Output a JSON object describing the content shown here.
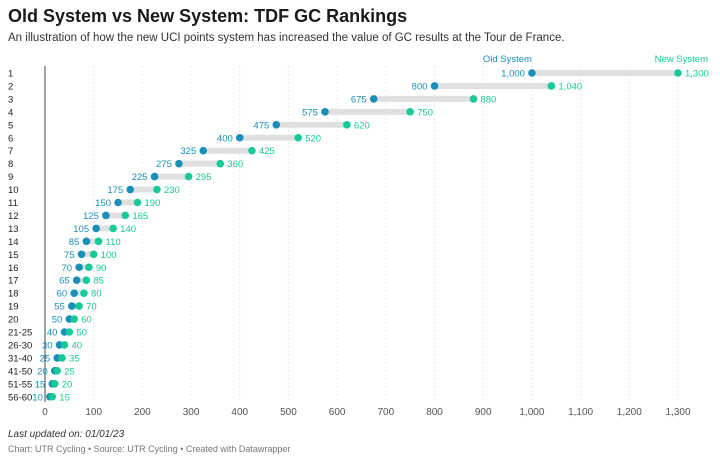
{
  "header": {
    "title": "Old System vs New System: TDF GC Rankings",
    "subtitle": "An illustration of how the new UCI points system has increased the value of GC results at the Tour de France."
  },
  "colors": {
    "old": "#1b8fb8",
    "new": "#18c99a",
    "connector": "#e0e0e0",
    "grid": "#e9e9e9",
    "axis": "#555555"
  },
  "chart_data": {
    "type": "dot-range",
    "xlim": [
      0,
      1300
    ],
    "xticks": [
      "0",
      "100",
      "200",
      "300",
      "400",
      "500",
      "600",
      "700",
      "800",
      "900",
      "1,000",
      "1,100",
      "1,200",
      "1,300"
    ],
    "series": [
      {
        "name": "Old System",
        "color": "#1b8fb8"
      },
      {
        "name": "New System",
        "color": "#18c99a"
      }
    ],
    "rows": [
      {
        "rank": "1",
        "old": 1000,
        "new": 1300,
        "old_label": "1,000",
        "new_label": "1,300"
      },
      {
        "rank": "2",
        "old": 800,
        "new": 1040,
        "old_label": "800",
        "new_label": "1,040"
      },
      {
        "rank": "3",
        "old": 675,
        "new": 880,
        "old_label": "675",
        "new_label": "880"
      },
      {
        "rank": "4",
        "old": 575,
        "new": 750,
        "old_label": "575",
        "new_label": "750"
      },
      {
        "rank": "5",
        "old": 475,
        "new": 620,
        "old_label": "475",
        "new_label": "620"
      },
      {
        "rank": "6",
        "old": 400,
        "new": 520,
        "old_label": "400",
        "new_label": "520"
      },
      {
        "rank": "7",
        "old": 325,
        "new": 425,
        "old_label": "325",
        "new_label": "425"
      },
      {
        "rank": "8",
        "old": 275,
        "new": 360,
        "old_label": "275",
        "new_label": "360"
      },
      {
        "rank": "9",
        "old": 225,
        "new": 295,
        "old_label": "225",
        "new_label": "295"
      },
      {
        "rank": "10",
        "old": 175,
        "new": 230,
        "old_label": "175",
        "new_label": "230"
      },
      {
        "rank": "11",
        "old": 150,
        "new": 190,
        "old_label": "150",
        "new_label": "190"
      },
      {
        "rank": "12",
        "old": 125,
        "new": 165,
        "old_label": "125",
        "new_label": "165"
      },
      {
        "rank": "13",
        "old": 105,
        "new": 140,
        "old_label": "105",
        "new_label": "140"
      },
      {
        "rank": "14",
        "old": 85,
        "new": 110,
        "old_label": "85",
        "new_label": "110"
      },
      {
        "rank": "15",
        "old": 75,
        "new": 100,
        "old_label": "75",
        "new_label": "100"
      },
      {
        "rank": "16",
        "old": 70,
        "new": 90,
        "old_label": "70",
        "new_label": "90"
      },
      {
        "rank": "17",
        "old": 65,
        "new": 85,
        "old_label": "65",
        "new_label": "85"
      },
      {
        "rank": "18",
        "old": 60,
        "new": 80,
        "old_label": "60",
        "new_label": "80"
      },
      {
        "rank": "19",
        "old": 55,
        "new": 70,
        "old_label": "55",
        "new_label": "70"
      },
      {
        "rank": "20",
        "old": 50,
        "new": 60,
        "old_label": "50",
        "new_label": "60"
      },
      {
        "rank": "21-25",
        "old": 40,
        "new": 50,
        "old_label": "40",
        "new_label": "50"
      },
      {
        "rank": "26-30",
        "old": 30,
        "new": 40,
        "old_label": "30",
        "new_label": "40"
      },
      {
        "rank": "31-40",
        "old": 25,
        "new": 35,
        "old_label": "25",
        "new_label": "35"
      },
      {
        "rank": "41-50",
        "old": 20,
        "new": 25,
        "old_label": "20",
        "new_label": "25"
      },
      {
        "rank": "51-55",
        "old": 15,
        "new": 20,
        "old_label": "15",
        "new_label": "20"
      },
      {
        "rank": "56-60",
        "old": 10,
        "new": 15,
        "old_label": "10",
        "new_label": "15"
      }
    ]
  },
  "notes": {
    "updated": "Last updated on: 01/01/23",
    "chart_credit": "Chart: UTR Cycling",
    "source": "Source: UTR Cycling",
    "created_with": "Created with Datawrapper",
    "separator": " • "
  }
}
